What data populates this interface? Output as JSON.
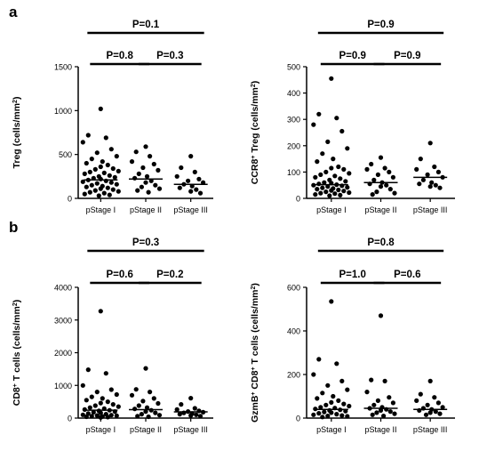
{
  "panels": [
    {
      "letter": "a"
    },
    {
      "letter": "b"
    }
  ],
  "chart_data": [
    {
      "type": "scatter",
      "subtype": "dot-plot-with-median",
      "ylabel_main": "Treg (cells/mm",
      "ylabel_sup": "2",
      "ylabel_end": ")",
      "categories": [
        "pStage I",
        "pStage II",
        "pStage III"
      ],
      "ylim": [
        0,
        1500
      ],
      "yticks": [
        0,
        500,
        1000,
        1500
      ],
      "medians": [
        210,
        220,
        160
      ],
      "points": [
        [
          1020,
          720,
          690,
          640,
          560,
          520,
          480,
          450,
          420,
          400,
          380,
          360,
          340,
          330,
          310,
          300,
          290,
          280,
          260,
          250,
          240,
          230,
          220,
          210,
          200,
          190,
          180,
          170,
          160,
          150,
          140,
          130,
          120,
          110,
          100,
          90,
          80,
          70,
          60,
          50,
          40,
          30
        ],
        [
          590,
          530,
          480,
          420,
          390,
          350,
          320,
          280,
          250,
          230,
          200,
          180,
          150,
          130,
          110,
          90,
          70
        ],
        [
          480,
          350,
          300,
          250,
          220,
          200,
          180,
          160,
          140,
          120,
          100,
          80,
          60
        ]
      ],
      "brackets": [
        {
          "label": "P=0.1",
          "from": 0,
          "to": 2,
          "level": 0
        },
        {
          "label": "P=0.8",
          "from": 0,
          "to": 1,
          "level": 1
        },
        {
          "label": "P=0.3",
          "from": 1,
          "to": 2,
          "level": 1
        }
      ]
    },
    {
      "type": "scatter",
      "subtype": "dot-plot-with-median",
      "ylabel_pre": "CCR8",
      "ylabel_sup1": "+",
      "ylabel_main": " Treg (cells/mm",
      "ylabel_sup": "2",
      "ylabel_end": ")",
      "categories": [
        "pStage I",
        "pStage II",
        "pStage III"
      ],
      "ylim": [
        0,
        500
      ],
      "yticks": [
        0,
        100,
        200,
        300,
        400,
        500
      ],
      "medians": [
        52,
        60,
        80
      ],
      "points": [
        [
          455,
          320,
          305,
          280,
          255,
          215,
          190,
          170,
          150,
          140,
          120,
          115,
          110,
          100,
          95,
          90,
          85,
          80,
          75,
          70,
          65,
          60,
          58,
          55,
          52,
          50,
          48,
          45,
          42,
          40,
          38,
          35,
          32,
          30,
          28,
          25,
          22,
          20,
          18,
          15,
          12,
          10
        ],
        [
          155,
          130,
          115,
          110,
          100,
          90,
          80,
          70,
          60,
          55,
          50,
          45,
          35,
          25,
          20,
          15
        ],
        [
          210,
          150,
          120,
          110,
          100,
          90,
          80,
          70,
          60,
          55,
          50,
          45,
          40
        ]
      ],
      "brackets": [
        {
          "label": "P=0.9",
          "from": 0,
          "to": 2,
          "level": 0
        },
        {
          "label": "P=0.9",
          "from": 0,
          "to": 1,
          "level": 1
        },
        {
          "label": "P=0.9",
          "from": 1,
          "to": 2,
          "level": 1
        }
      ]
    },
    {
      "type": "scatter",
      "subtype": "dot-plot-with-median",
      "ylabel_pre": "CD8",
      "ylabel_sup1": "+",
      "ylabel_main": " T cells (cells/mm",
      "ylabel_sup": "2",
      "ylabel_end": ")",
      "categories": [
        "pStage I",
        "pStage II",
        "pStage III"
      ],
      "ylim": [
        0,
        4000
      ],
      "yticks": [
        0,
        1000,
        2000,
        3000,
        4000
      ],
      "medians": [
        240,
        260,
        190
      ],
      "points": [
        [
          3270,
          1480,
          1370,
          1000,
          870,
          800,
          720,
          650,
          600,
          550,
          500,
          460,
          420,
          380,
          350,
          320,
          290,
          260,
          240,
          220,
          200,
          180,
          160,
          140,
          120,
          100,
          90,
          80,
          70,
          60,
          50,
          40,
          30,
          20
        ],
        [
          1520,
          880,
          800,
          700,
          600,
          520,
          450,
          380,
          320,
          280,
          240,
          200,
          160,
          120,
          90,
          60,
          40
        ],
        [
          610,
          420,
          300,
          260,
          220,
          200,
          180,
          160,
          140,
          120,
          100,
          80,
          60
        ]
      ],
      "brackets": [
        {
          "label": "P=0.3",
          "from": 0,
          "to": 2,
          "level": 0
        },
        {
          "label": "P=0.6",
          "from": 0,
          "to": 1,
          "level": 1
        },
        {
          "label": "P=0.2",
          "from": 1,
          "to": 2,
          "level": 1
        }
      ]
    },
    {
      "type": "scatter",
      "subtype": "dot-plot-with-median",
      "ylabel_pre": "GzmB",
      "ylabel_sup1": "+",
      "ylabel_main": " CD8",
      "ylabel_sup2": "+",
      "ylabel_rest": " T cells (cells/mm",
      "ylabel_sup": "2",
      "ylabel_end": ")",
      "categories": [
        "pStage I",
        "pStage II",
        "pStage III"
      ],
      "ylim": [
        0,
        600
      ],
      "yticks": [
        0,
        200,
        400,
        600
      ],
      "medians": [
        40,
        45,
        40
      ],
      "points": [
        [
          535,
          270,
          250,
          200,
          170,
          150,
          130,
          115,
          100,
          90,
          80,
          72,
          65,
          60,
          55,
          50,
          46,
          42,
          38,
          35,
          32,
          28,
          25,
          22,
          18,
          15,
          12,
          10,
          8,
          5
        ],
        [
          470,
          175,
          170,
          120,
          95,
          80,
          70,
          60,
          50,
          45,
          40,
          35,
          30,
          25,
          20,
          15,
          10
        ],
        [
          170,
          110,
          95,
          80,
          70,
          60,
          50,
          45,
          40,
          35,
          30,
          25,
          20,
          15
        ]
      ],
      "brackets": [
        {
          "label": "P=0.8",
          "from": 0,
          "to": 2,
          "level": 0
        },
        {
          "label": "P=1.0",
          "from": 0,
          "to": 1,
          "level": 1
        },
        {
          "label": "P=0.6",
          "from": 1,
          "to": 2,
          "level": 1
        }
      ]
    }
  ]
}
